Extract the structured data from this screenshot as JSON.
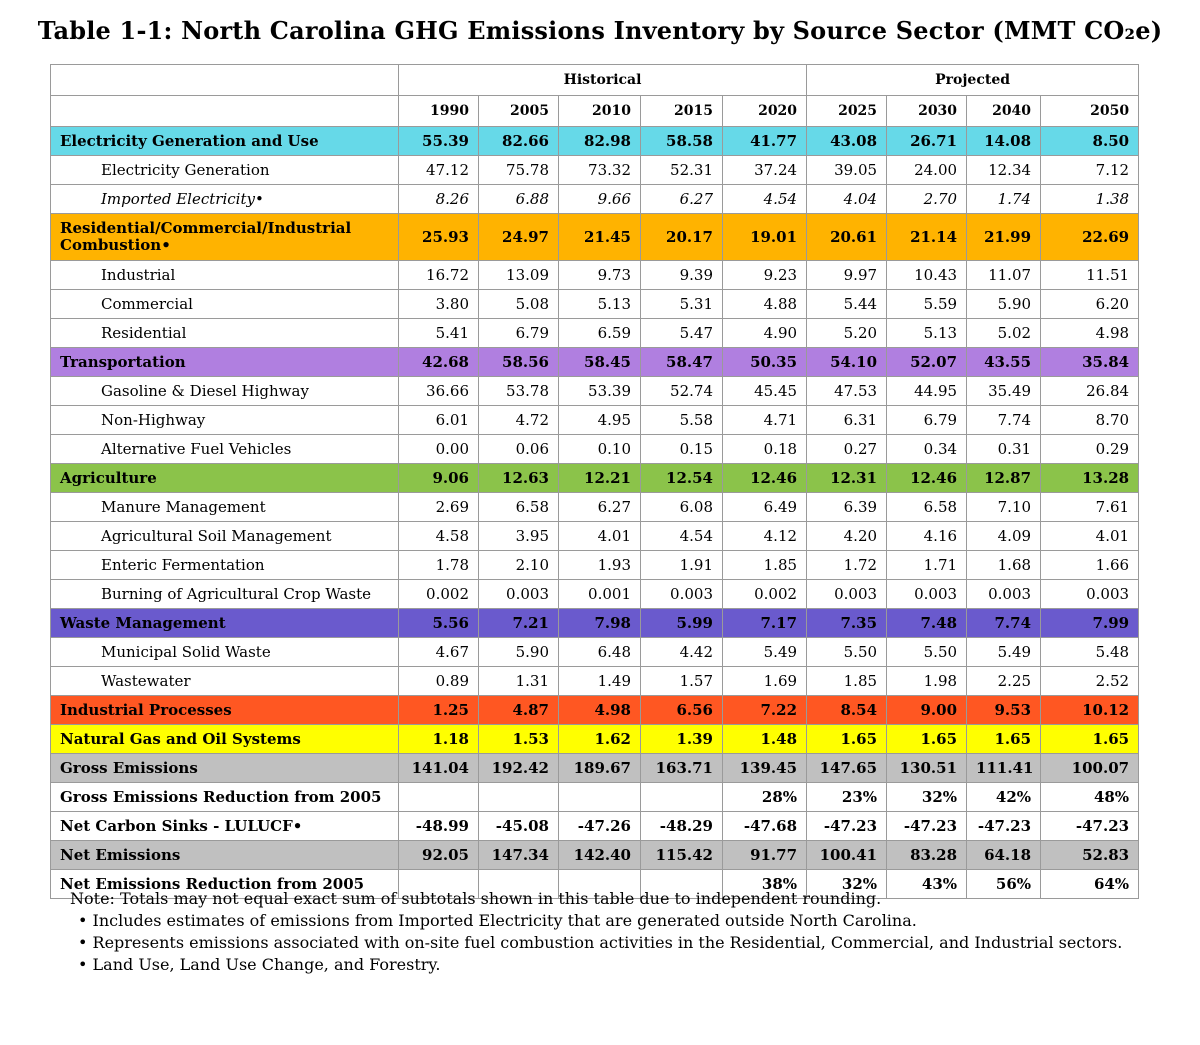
{
  "title": "Table 1-1:  North Carolina GHG Emissions Inventory by Source Sector (MMT CO₂e)",
  "group_headers": {
    "historical": "Historical",
    "projected": "Projected"
  },
  "years": [
    "1990",
    "2005",
    "2010",
    "2015",
    "2020",
    "2025",
    "2030",
    "2040",
    "2050"
  ],
  "colors": {
    "electricity": "#66d9e8",
    "combustion": "#ffb300",
    "transportation": "#b07fe0",
    "agriculture": "#8bc34a",
    "waste": "#6a5acd",
    "industrial_processes": "#ff5722",
    "natural_gas": "#ffff00",
    "gross_net": "#c0c0c0"
  },
  "rows": [
    {
      "label": "Electricity Generation and Use",
      "type": "section",
      "color": "#66d9e8",
      "values": [
        "55.39",
        "82.66",
        "82.98",
        "58.58",
        "41.77",
        "43.08",
        "26.71",
        "14.08",
        "8.50"
      ]
    },
    {
      "label": "Electricity Generation",
      "type": "sub",
      "values": [
        "47.12",
        "75.78",
        "73.32",
        "52.31",
        "37.24",
        "39.05",
        "24.00",
        "12.34",
        "7.12"
      ]
    },
    {
      "label": "Imported Electricity•",
      "type": "sub-italic",
      "values": [
        "8.26",
        "6.88",
        "9.66",
        "6.27",
        "4.54",
        "4.04",
        "2.70",
        "1.74",
        "1.38"
      ]
    },
    {
      "label": "Residential/Commercial/Industrial Combustion•",
      "type": "section-tall",
      "color": "#ffb300",
      "values": [
        "25.93",
        "24.97",
        "21.45",
        "20.17",
        "19.01",
        "20.61",
        "21.14",
        "21.99",
        "22.69"
      ]
    },
    {
      "label": "Industrial",
      "type": "sub",
      "values": [
        "16.72",
        "13.09",
        "9.73",
        "9.39",
        "9.23",
        "9.97",
        "10.43",
        "11.07",
        "11.51"
      ]
    },
    {
      "label": "Commercial",
      "type": "sub",
      "values": [
        "3.80",
        "5.08",
        "5.13",
        "5.31",
        "4.88",
        "5.44",
        "5.59",
        "5.90",
        "6.20"
      ]
    },
    {
      "label": "Residential",
      "type": "sub",
      "values": [
        "5.41",
        "6.79",
        "6.59",
        "5.47",
        "4.90",
        "5.20",
        "5.13",
        "5.02",
        "4.98"
      ]
    },
    {
      "label": "Transportation",
      "type": "section",
      "color": "#b07fe0",
      "values": [
        "42.68",
        "58.56",
        "58.45",
        "58.47",
        "50.35",
        "54.10",
        "52.07",
        "43.55",
        "35.84"
      ]
    },
    {
      "label": "Gasoline & Diesel Highway",
      "type": "sub",
      "values": [
        "36.66",
        "53.78",
        "53.39",
        "52.74",
        "45.45",
        "47.53",
        "44.95",
        "35.49",
        "26.84"
      ]
    },
    {
      "label": "Non-Highway",
      "type": "sub",
      "values": [
        "6.01",
        "4.72",
        "4.95",
        "5.58",
        "4.71",
        "6.31",
        "6.79",
        "7.74",
        "8.70"
      ]
    },
    {
      "label": "Alternative Fuel Vehicles",
      "type": "sub",
      "values": [
        "0.00",
        "0.06",
        "0.10",
        "0.15",
        "0.18",
        "0.27",
        "0.34",
        "0.31",
        "0.29"
      ]
    },
    {
      "label": "Agriculture",
      "type": "section",
      "color": "#8bc34a",
      "values": [
        "9.06",
        "12.63",
        "12.21",
        "12.54",
        "12.46",
        "12.31",
        "12.46",
        "12.87",
        "13.28"
      ]
    },
    {
      "label": "Manure Management",
      "type": "sub",
      "values": [
        "2.69",
        "6.58",
        "6.27",
        "6.08",
        "6.49",
        "6.39",
        "6.58",
        "7.10",
        "7.61"
      ]
    },
    {
      "label": "Agricultural Soil Management",
      "type": "sub",
      "values": [
        "4.58",
        "3.95",
        "4.01",
        "4.54",
        "4.12",
        "4.20",
        "4.16",
        "4.09",
        "4.01"
      ]
    },
    {
      "label": "Enteric Fermentation",
      "type": "sub",
      "values": [
        "1.78",
        "2.10",
        "1.93",
        "1.91",
        "1.85",
        "1.72",
        "1.71",
        "1.68",
        "1.66"
      ]
    },
    {
      "label": "Burning of Agricultural Crop Waste",
      "type": "sub",
      "values": [
        "0.002",
        "0.003",
        "0.001",
        "0.003",
        "0.002",
        "0.003",
        "0.003",
        "0.003",
        "0.003"
      ]
    },
    {
      "label": "Waste Management",
      "type": "section",
      "color": "#6a5acd",
      "values": [
        "5.56",
        "7.21",
        "7.98",
        "5.99",
        "7.17",
        "7.35",
        "7.48",
        "7.74",
        "7.99"
      ]
    },
    {
      "label": "Municipal Solid Waste",
      "type": "sub",
      "values": [
        "4.67",
        "5.90",
        "6.48",
        "4.42",
        "5.49",
        "5.50",
        "5.50",
        "5.49",
        "5.48"
      ]
    },
    {
      "label": "Wastewater",
      "type": "sub",
      "values": [
        "0.89",
        "1.31",
        "1.49",
        "1.57",
        "1.69",
        "1.85",
        "1.98",
        "2.25",
        "2.52"
      ]
    },
    {
      "label": "Industrial Processes",
      "type": "section",
      "color": "#ff5722",
      "values": [
        "1.25",
        "4.87",
        "4.98",
        "6.56",
        "7.22",
        "8.54",
        "9.00",
        "9.53",
        "10.12"
      ]
    },
    {
      "label": "Natural Gas and Oil Systems",
      "type": "section",
      "color": "#ffff00",
      "values": [
        "1.18",
        "1.53",
        "1.62",
        "1.39",
        "1.48",
        "1.65",
        "1.65",
        "1.65",
        "1.65"
      ]
    },
    {
      "label": "Gross Emissions",
      "type": "section",
      "color": "#c0c0c0",
      "values": [
        "141.04",
        "192.42",
        "189.67",
        "163.71",
        "139.45",
        "147.65",
        "130.51",
        "111.41",
        "100.07"
      ]
    },
    {
      "label": "Gross Emissions Reduction from 2005",
      "type": "summary",
      "values": [
        "",
        "",
        "",
        "",
        "28%",
        "23%",
        "32%",
        "42%",
        "48%"
      ]
    },
    {
      "label": "Net Carbon Sinks - LULUCF•",
      "type": "summary",
      "values": [
        "-48.99",
        "-45.08",
        "-47.26",
        "-48.29",
        "-47.68",
        "-47.23",
        "-47.23",
        "-47.23",
        "-47.23"
      ]
    },
    {
      "label": "Net Emissions",
      "type": "section",
      "color": "#c0c0c0",
      "values": [
        "92.05",
        "147.34",
        "142.40",
        "115.42",
        "91.77",
        "100.41",
        "83.28",
        "64.18",
        "52.83"
      ]
    },
    {
      "label": "Net Emissions Reduction from 2005",
      "type": "summary",
      "values": [
        "",
        "",
        "",
        "",
        "38%",
        "32%",
        "43%",
        "56%",
        "64%"
      ]
    }
  ],
  "notes": {
    "main": "Note: Totals may not equal exact sum of subtotals shown in this table due to independent rounding.",
    "footnotes": [
      "• Includes estimates of emissions from Imported Electricity that are generated outside North Carolina.",
      "• Represents emissions associated with on-site fuel combustion activities in the Residential, Commercial, and Industrial sectors.",
      "• Land Use, Land Use Change, and Forestry."
    ]
  }
}
